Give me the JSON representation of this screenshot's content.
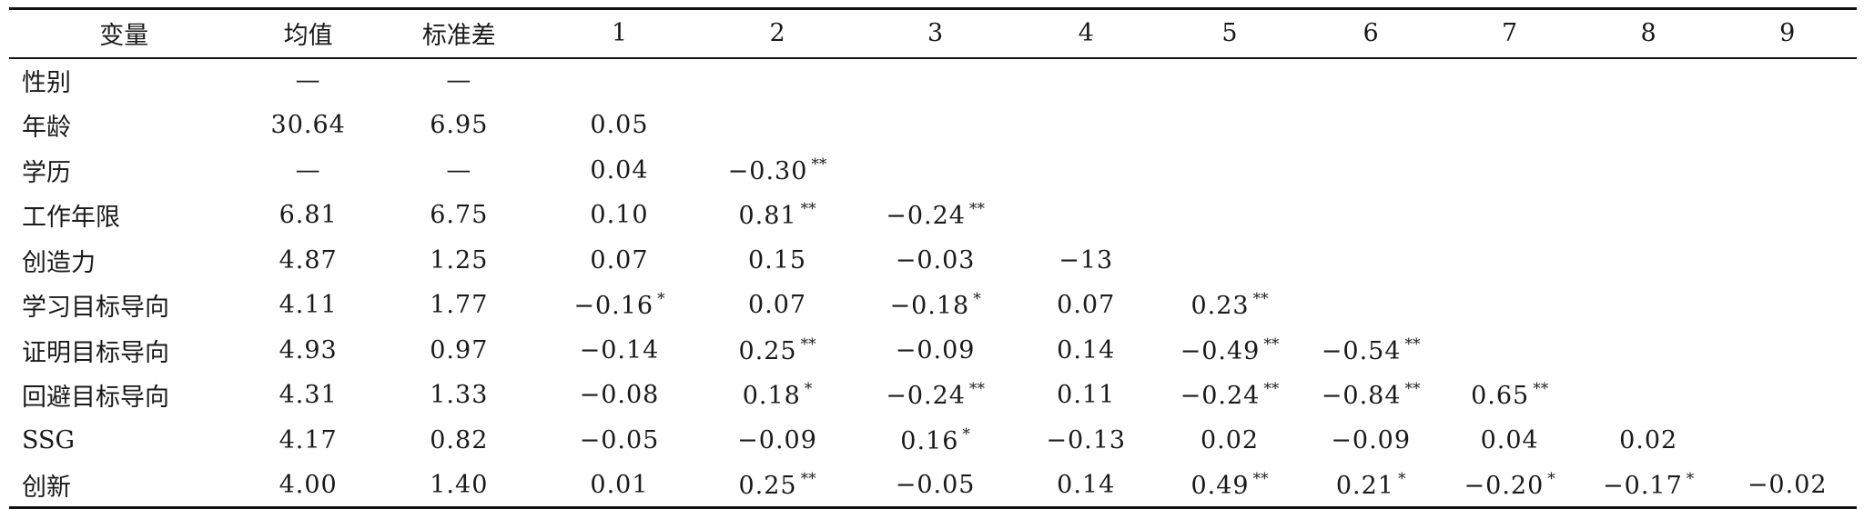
{
  "table": {
    "headers": [
      "变量",
      "均值",
      "标准差",
      "1",
      "2",
      "3",
      "4",
      "5",
      "6",
      "7",
      "8",
      "9"
    ],
    "rows": [
      {
        "variable": "性别",
        "mean": "—",
        "sd": "—",
        "cells": []
      },
      {
        "variable": "年龄",
        "mean": "30.64",
        "sd": "6.95",
        "cells": [
          {
            "v": "0.05",
            "s": ""
          }
        ]
      },
      {
        "variable": "学历",
        "mean": "—",
        "sd": "—",
        "cells": [
          {
            "v": "0.04",
            "s": ""
          },
          {
            "v": "−0.30",
            "s": "**"
          }
        ]
      },
      {
        "variable": "工作年限",
        "mean": "6.81",
        "sd": "6.75",
        "cells": [
          {
            "v": "0.10",
            "s": ""
          },
          {
            "v": "0.81",
            "s": "**"
          },
          {
            "v": "−0.24",
            "s": "**"
          }
        ]
      },
      {
        "variable": "创造力",
        "mean": "4.87",
        "sd": "1.25",
        "cells": [
          {
            "v": "0.07",
            "s": ""
          },
          {
            "v": "0.15",
            "s": ""
          },
          {
            "v": "−0.03",
            "s": ""
          },
          {
            "v": "−13",
            "s": ""
          }
        ]
      },
      {
        "variable": "学习目标导向",
        "mean": "4.11",
        "sd": "1.77",
        "cells": [
          {
            "v": "−0.16",
            "s": "*"
          },
          {
            "v": "0.07",
            "s": ""
          },
          {
            "v": "−0.18",
            "s": "*"
          },
          {
            "v": "0.07",
            "s": ""
          },
          {
            "v": "0.23",
            "s": "**"
          }
        ]
      },
      {
        "variable": "证明目标导向",
        "mean": "4.93",
        "sd": "0.97",
        "cells": [
          {
            "v": "−0.14",
            "s": ""
          },
          {
            "v": "0.25",
            "s": "**"
          },
          {
            "v": "−0.09",
            "s": ""
          },
          {
            "v": "0.14",
            "s": ""
          },
          {
            "v": "−0.49",
            "s": "**"
          },
          {
            "v": "−0.54",
            "s": "**"
          }
        ]
      },
      {
        "variable": "回避目标导向",
        "mean": "4.31",
        "sd": "1.33",
        "cells": [
          {
            "v": "−0.08",
            "s": ""
          },
          {
            "v": "0.18",
            "s": "*"
          },
          {
            "v": "−0.24",
            "s": "**"
          },
          {
            "v": "0.11",
            "s": ""
          },
          {
            "v": "−0.24",
            "s": "**"
          },
          {
            "v": "−0.84",
            "s": "**"
          },
          {
            "v": "0.65",
            "s": "**"
          }
        ]
      },
      {
        "variable": "SSG",
        "mean": "4.17",
        "sd": "0.82",
        "cells": [
          {
            "v": "−0.05",
            "s": ""
          },
          {
            "v": "−0.09",
            "s": ""
          },
          {
            "v": "0.16",
            "s": "*"
          },
          {
            "v": "−0.13",
            "s": ""
          },
          {
            "v": "0.02",
            "s": ""
          },
          {
            "v": "−0.09",
            "s": ""
          },
          {
            "v": "0.04",
            "s": ""
          },
          {
            "v": "0.02",
            "s": ""
          }
        ]
      },
      {
        "variable": "创新",
        "mean": "4.00",
        "sd": "1.40",
        "cells": [
          {
            "v": "0.01",
            "s": ""
          },
          {
            "v": "0.25",
            "s": "**"
          },
          {
            "v": "−0.05",
            "s": ""
          },
          {
            "v": "0.14",
            "s": ""
          },
          {
            "v": "0.49",
            "s": "**"
          },
          {
            "v": "0.21",
            "s": "*"
          },
          {
            "v": "−0.20",
            "s": "*"
          },
          {
            "v": "−0.17",
            "s": "*"
          },
          {
            "v": "−0.02",
            "s": ""
          }
        ]
      }
    ]
  }
}
